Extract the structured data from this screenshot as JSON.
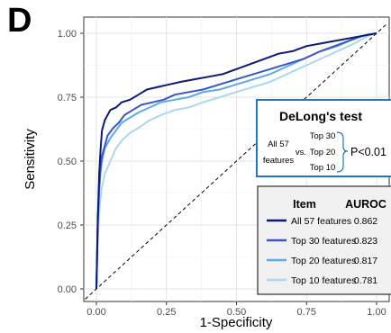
{
  "panel_label": "D",
  "chart_data": {
    "type": "line",
    "xlabel": "1-Specificity",
    "ylabel": "Sensitivity",
    "xlim": [
      -0.04,
      1.04
    ],
    "ylim": [
      -0.04,
      1.04
    ],
    "x_ticks": [
      "0.00",
      "0.25",
      "0.50",
      "0.75",
      "1.00"
    ],
    "y_ticks": [
      "0.00",
      "0.25",
      "0.50",
      "0.75",
      "1.00"
    ],
    "grid": true,
    "reference_line": "diagonal dashed",
    "series": [
      {
        "name": "All 57 features",
        "color": "#0b1a78",
        "auroc": "0.862",
        "x": [
          0,
          0.005,
          0.01,
          0.015,
          0.02,
          0.03,
          0.04,
          0.05,
          0.07,
          0.09,
          0.12,
          0.15,
          0.18,
          0.22,
          0.26,
          0.3,
          0.35,
          0.4,
          0.45,
          0.5,
          0.55,
          0.6,
          0.65,
          0.7,
          0.75,
          0.8,
          0.85,
          0.9,
          0.95,
          1.0
        ],
        "y": [
          0,
          0.28,
          0.45,
          0.55,
          0.62,
          0.66,
          0.68,
          0.7,
          0.71,
          0.73,
          0.74,
          0.76,
          0.78,
          0.79,
          0.8,
          0.81,
          0.82,
          0.83,
          0.84,
          0.86,
          0.88,
          0.9,
          0.92,
          0.93,
          0.95,
          0.96,
          0.97,
          0.98,
          0.99,
          1.0
        ]
      },
      {
        "name": "Top 30 features",
        "color": "#3a56c6",
        "auroc": "0.823",
        "x": [
          0,
          0.005,
          0.01,
          0.015,
          0.02,
          0.03,
          0.04,
          0.06,
          0.08,
          0.1,
          0.13,
          0.16,
          0.2,
          0.24,
          0.28,
          0.33,
          0.38,
          0.44,
          0.5,
          0.56,
          0.62,
          0.68,
          0.74,
          0.8,
          0.85,
          0.9,
          0.95,
          1.0
        ],
        "y": [
          0,
          0.27,
          0.4,
          0.48,
          0.52,
          0.56,
          0.6,
          0.63,
          0.65,
          0.68,
          0.7,
          0.72,
          0.73,
          0.74,
          0.76,
          0.77,
          0.78,
          0.8,
          0.82,
          0.84,
          0.86,
          0.88,
          0.9,
          0.93,
          0.95,
          0.97,
          0.99,
          1.0
        ]
      },
      {
        "name": "Top 20 features",
        "color": "#5aa9ea",
        "auroc": "0.817",
        "x": [
          0,
          0.005,
          0.01,
          0.015,
          0.02,
          0.03,
          0.05,
          0.07,
          0.09,
          0.12,
          0.15,
          0.19,
          0.23,
          0.28,
          0.33,
          0.38,
          0.44,
          0.5,
          0.56,
          0.62,
          0.68,
          0.74,
          0.8,
          0.86,
          0.92,
          0.97,
          1.0
        ],
        "y": [
          0,
          0.25,
          0.38,
          0.46,
          0.5,
          0.55,
          0.59,
          0.62,
          0.65,
          0.67,
          0.69,
          0.71,
          0.73,
          0.74,
          0.75,
          0.77,
          0.78,
          0.8,
          0.82,
          0.84,
          0.87,
          0.9,
          0.93,
          0.95,
          0.98,
          0.995,
          1.0
        ]
      },
      {
        "name": "Top 10 features",
        "color": "#a9d8ee",
        "auroc": "0.781",
        "x": [
          0,
          0.005,
          0.01,
          0.015,
          0.02,
          0.03,
          0.05,
          0.07,
          0.09,
          0.12,
          0.15,
          0.19,
          0.23,
          0.28,
          0.33,
          0.38,
          0.44,
          0.5,
          0.56,
          0.62,
          0.68,
          0.74,
          0.8,
          0.86,
          0.92,
          0.97,
          1.0
        ],
        "y": [
          0,
          0.2,
          0.3,
          0.36,
          0.4,
          0.45,
          0.5,
          0.55,
          0.58,
          0.61,
          0.63,
          0.66,
          0.68,
          0.7,
          0.71,
          0.73,
          0.75,
          0.77,
          0.79,
          0.81,
          0.84,
          0.87,
          0.9,
          0.93,
          0.96,
          0.99,
          1.0
        ]
      }
    ],
    "annotations": {
      "delong_title": "DeLong's test",
      "left_label_line1": "All 57",
      "left_label_line2": "features",
      "vs": "vs.",
      "comparisons": [
        "Top 30",
        "Top 20",
        "Top 10"
      ],
      "p_value": "P<0.01"
    },
    "legend": {
      "position": "bottom-right",
      "header_item": "Item",
      "header_auroc": "AUROC"
    }
  }
}
